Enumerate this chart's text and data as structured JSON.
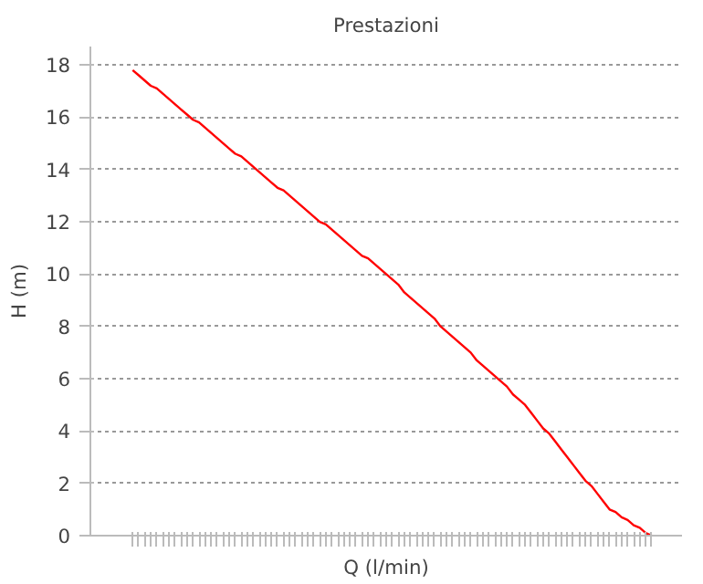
{
  "chart_data": {
    "type": "line",
    "title": "Prestazioni",
    "xlabel": "Q (l/min)",
    "ylabel": "H (m)",
    "categories": [
      null,
      null,
      null,
      null,
      null,
      null,
      null,
      null,
      null,
      null,
      null,
      null,
      null,
      null,
      null,
      null,
      null,
      null,
      null,
      null,
      null,
      null,
      null,
      null,
      null,
      null,
      null,
      null,
      null,
      null,
      null,
      null,
      null,
      null,
      null,
      null,
      null,
      null,
      null,
      null,
      null,
      null,
      null,
      null,
      null,
      null,
      null,
      null,
      null,
      null,
      null,
      null,
      null,
      null,
      null,
      null,
      null,
      null,
      null,
      null,
      null,
      null,
      null,
      null,
      null,
      null,
      null,
      null,
      null,
      null,
      null,
      null,
      null,
      null,
      null,
      null,
      null,
      null,
      null,
      null,
      null,
      null,
      null,
      null,
      null,
      null,
      null
    ],
    "series": [
      {
        "color": "#ff0000",
        "values": [
          17.8,
          17.6,
          17.4,
          17.2,
          17.1,
          16.9,
          16.7,
          16.5,
          16.3,
          16.1,
          15.9,
          15.8,
          15.6,
          15.4,
          15.2,
          15.0,
          14.8,
          14.6,
          14.5,
          14.3,
          14.1,
          13.9,
          13.7,
          13.5,
          13.3,
          13.2,
          13.0,
          12.8,
          12.6,
          12.4,
          12.2,
          12.0,
          11.9,
          11.7,
          11.5,
          11.3,
          11.1,
          10.9,
          10.7,
          10.6,
          10.4,
          10.2,
          10.0,
          9.8,
          9.6,
          9.3,
          9.1,
          8.9,
          8.7,
          8.5,
          8.3,
          8.0,
          7.8,
          7.6,
          7.4,
          7.2,
          7.0,
          6.7,
          6.5,
          6.3,
          6.1,
          5.9,
          5.7,
          5.4,
          5.2,
          5.0,
          4.7,
          4.4,
          4.1,
          3.9,
          3.6,
          3.3,
          3.0,
          2.7,
          2.4,
          2.1,
          1.9,
          1.6,
          1.3,
          1.0,
          0.9,
          0.7,
          0.6,
          0.4,
          0.3,
          0.1,
          0.0
        ]
      }
    ],
    "ylim": [
      0,
      18.7
    ],
    "yticks": [
      0,
      2,
      4,
      6,
      8,
      10,
      12,
      14,
      16,
      18
    ],
    "grid": "y",
    "marker": "none",
    "line_style": "solid"
  }
}
